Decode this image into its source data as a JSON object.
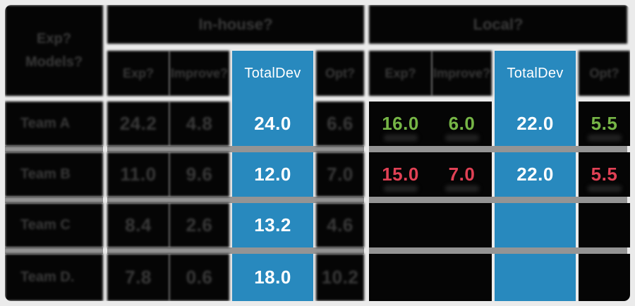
{
  "colors": {
    "accent_blue": "#2889BE",
    "positive_green": "#76B546",
    "negative_red": "#E04155",
    "cell_black": "#050505",
    "row_separator_gray": "#949494",
    "background_gray": "#EBEBEB",
    "obscured_text_gray": "#3A3A3A"
  },
  "corner": {
    "line1_obscured": "Exp?",
    "line2_obscured": "Models?"
  },
  "groups": [
    {
      "title_obscured": "In-house?",
      "subheaders": {
        "c1_obscured": "Exp?",
        "c2_obscured": "Improve?",
        "total": "TotalDev",
        "c4_obscured": "Opt?"
      }
    },
    {
      "title_obscured": "Local?",
      "subheaders": {
        "c1_obscured": "Exp?",
        "c2_obscured": "Improve?",
        "total": "TotalDev",
        "c4_obscured": "Opt?"
      }
    }
  ],
  "rows": [
    {
      "label_obscured": "Team A",
      "g1": {
        "c1_obscured": "24.2",
        "c2_obscured": "4.8",
        "total": "24.0",
        "c4_obscured": "6.6"
      },
      "g2": {
        "c1": "16.0",
        "c2": "6.0",
        "total": "22.0",
        "c4": "5.5"
      }
    },
    {
      "label_obscured": "Team B",
      "g1": {
        "c1_obscured": "11.0",
        "c2_obscured": "9.6",
        "total": "12.0",
        "c4_obscured": "7.0"
      },
      "g2": {
        "c1": "15.0",
        "c2": "7.0",
        "total": "22.0",
        "c4": "5.5"
      }
    },
    {
      "label_obscured": "Team C",
      "g1": {
        "c1_obscured": "8.4",
        "c2_obscured": "2.6",
        "total": "13.2",
        "c4_obscured": "4.6"
      },
      "g2": {
        "c1": "",
        "c2": "",
        "total": "",
        "c4": ""
      }
    },
    {
      "label_obscured": "Team D.",
      "g1": {
        "c1_obscured": "7.8",
        "c2_obscured": "0.6",
        "total": "18.0",
        "c4_obscured": "10.2"
      },
      "g2": {
        "c1": "",
        "c2": "",
        "total": "",
        "c4": ""
      }
    }
  ],
  "chart_data": {
    "type": "table",
    "title": "",
    "notes": "Two column groups, each with an emphasized blue TotalDev column; all non-highlighted text is obscured (dark blurred glyphs on black). Green = positive row values, red = negative row values.",
    "columns_group1": [
      "(obscured)",
      "(obscured)",
      "TotalDev",
      "(obscured)"
    ],
    "columns_group2": [
      "(obscured)",
      "(obscured)",
      "TotalDev",
      "(obscured)"
    ],
    "group1_totaldev_values": [
      24.0,
      12.0,
      13.2,
      18.0
    ],
    "group2_totaldev_values": [
      22.0,
      22.0,
      null,
      null
    ],
    "group2_row1_values_green": [
      16.0,
      6.0,
      5.5
    ],
    "group2_row2_values_red": [
      15.0,
      7.0,
      5.5
    ]
  }
}
